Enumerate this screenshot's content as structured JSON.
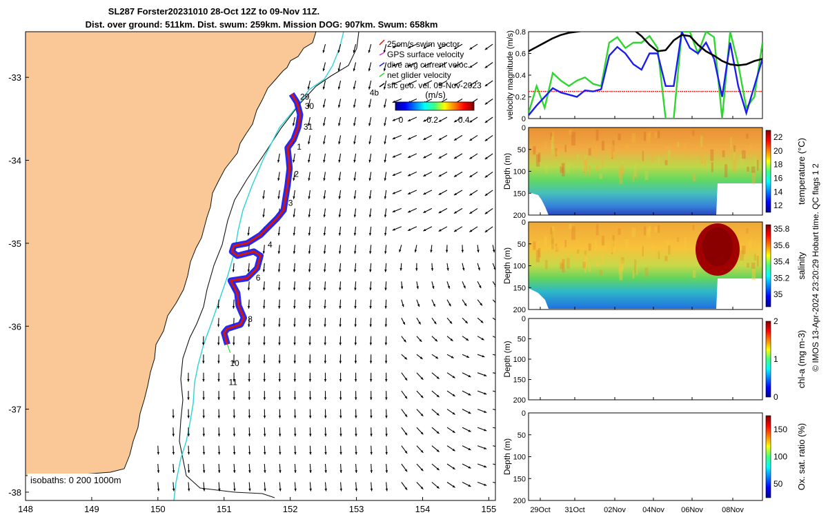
{
  "title": {
    "line1": "SL287 Forster20231010 28-Oct 12Z to 09-Nov 11Z.",
    "line2": "Dist. over ground: 511km. Dist. swum: 259km. Mission DOG: 907km. Swum: 658km"
  },
  "footer_text": "© IMOS 13-Apr-2024 23:20:29 Hobart time. QC flags 1  2",
  "colors": {
    "land": "#f9c896",
    "coast": "#111111",
    "iso200": "#2ad4d6",
    "track": "#d1180c",
    "current": "#1b1cf0",
    "gps": "#d733d6",
    "net": "#30d630",
    "thresh": "#ff2020"
  },
  "chart_data": [
    {
      "id": "map",
      "type": "map",
      "xticks": [
        "148",
        "149",
        "150",
        "151",
        "152",
        "153",
        "154",
        "155"
      ],
      "yticks": [
        "-33",
        "-34",
        "-35",
        "-36",
        "-37",
        "-38"
      ],
      "xlim": [
        148,
        155.1
      ],
      "ylim": [
        -38.1,
        -32.45
      ],
      "legend": [
        "25cm/s swim vector",
        "GPS surface velocity",
        "dive avg current veloc.",
        "net glider velocity",
        "sfc geo. vel. 09-Nov-2023"
      ],
      "isobath_label": "isobaths: 0   200  1000m",
      "colorbar": {
        "label": "(m/s)",
        "ticks": [
          "0",
          "0.2",
          "0.4"
        ],
        "range": [
          0,
          0.5
        ]
      },
      "day_labels": [
        {
          "text": "29",
          "lon": 152.15,
          "lat": -33.27
        },
        {
          "text": "30",
          "lon": 152.22,
          "lat": -33.38
        },
        {
          "text": "31",
          "lon": 152.2,
          "lat": -33.63
        },
        {
          "text": "1",
          "lon": 152.1,
          "lat": -33.87
        },
        {
          "text": "2",
          "lon": 152.06,
          "lat": -34.2
        },
        {
          "text": "3",
          "lon": 151.97,
          "lat": -34.55
        },
        {
          "text": "4",
          "lon": 151.66,
          "lat": -35.05
        },
        {
          "text": "6",
          "lon": 151.48,
          "lat": -35.45
        },
        {
          "text": "8",
          "lon": 151.36,
          "lat": -35.95
        },
        {
          "text": "10",
          "lon": 151.09,
          "lat": -36.48
        },
        {
          "text": "11",
          "lon": 151.07,
          "lat": -36.71
        },
        {
          "text": "4b",
          "lon": 153.2,
          "lat": -33.22
        }
      ],
      "track": [
        [
          152.02,
          -33.2
        ],
        [
          152.1,
          -33.3
        ],
        [
          152.15,
          -33.45
        ],
        [
          152.12,
          -33.6
        ],
        [
          152.05,
          -33.75
        ],
        [
          151.96,
          -33.85
        ],
        [
          151.98,
          -34.0
        ],
        [
          151.99,
          -34.1
        ],
        [
          151.96,
          -34.3
        ],
        [
          151.93,
          -34.45
        ],
        [
          151.9,
          -34.6
        ],
        [
          151.8,
          -34.7
        ],
        [
          151.55,
          -34.9
        ],
        [
          151.35,
          -35.0
        ],
        [
          151.15,
          -35.03
        ],
        [
          151.12,
          -35.1
        ],
        [
          151.2,
          -35.15
        ],
        [
          151.45,
          -35.1
        ],
        [
          151.55,
          -35.15
        ],
        [
          151.5,
          -35.3
        ],
        [
          151.35,
          -35.42
        ],
        [
          151.1,
          -35.45
        ],
        [
          151.2,
          -35.6
        ],
        [
          151.22,
          -35.75
        ],
        [
          151.3,
          -35.9
        ],
        [
          151.25,
          -35.98
        ],
        [
          151.05,
          -36.03
        ],
        [
          151.0,
          -36.08
        ],
        [
          151.05,
          -36.22
        ]
      ]
    },
    {
      "id": "velocity",
      "type": "line",
      "ylabel": "velocity magnitude (m/s)",
      "ylim": [
        0,
        0.8
      ],
      "yticks": [
        "0",
        "0.2",
        "0.4",
        "0.6",
        "0.8"
      ],
      "threshold": 0.25,
      "series": [
        {
          "name": "sfc geo",
          "values": [
            0.62,
            0.66,
            0.7,
            0.74,
            0.77,
            0.79,
            0.8,
            0.81,
            0.82,
            0.83,
            0.84,
            0.84,
            0.84,
            0.82,
            0.76,
            0.68,
            0.62,
            0.63,
            0.72,
            0.77,
            0.76,
            0.68,
            0.62,
            0.58,
            0.53,
            0.5,
            0.49,
            0.5,
            0.53,
            0.55
          ]
        },
        {
          "name": "dive avg current",
          "values": [
            0.03,
            0.12,
            0.2,
            0.28,
            0.24,
            0.22,
            0.2,
            0.26,
            0.25,
            0.27,
            0.58,
            0.66,
            0.6,
            0.5,
            0.45,
            0.6,
            0.6,
            0.3,
            0.3,
            0.8,
            0.65,
            0.6,
            0.7,
            0.55,
            0.2,
            0.7,
            0.3,
            0.05,
            0.3,
            0.55
          ]
        },
        {
          "name": "net glider velocity",
          "values": [
            0.05,
            0.3,
            0.1,
            0.42,
            0.35,
            0.3,
            0.35,
            0.38,
            0.32,
            0.3,
            0.7,
            0.75,
            0.65,
            0.7,
            0.7,
            0.76,
            0.65,
            0.0,
            0.0,
            0.8,
            0.8,
            0.6,
            0.8,
            0.75,
            0.0,
            0.8,
            0.5,
            0.1,
            0.2,
            0.7
          ]
        }
      ]
    },
    {
      "id": "temperature",
      "type": "heatmap",
      "ylabel": "Depth (m)",
      "yticks": [
        "0",
        "50",
        "100",
        "150",
        "200"
      ],
      "cbar_label": "temperature (°C)",
      "cbar_ticks": [
        "12",
        "14",
        "16",
        "18",
        "20",
        "22"
      ],
      "crange": [
        11,
        23
      ]
    },
    {
      "id": "salinity",
      "type": "heatmap",
      "ylabel": "Depth (m)",
      "yticks": [
        "0",
        "50",
        "100",
        "150",
        "200"
      ],
      "cbar_label": "salinity",
      "cbar_ticks": [
        "35",
        "35.2",
        "35.4",
        "35.6",
        "35.8"
      ],
      "crange": [
        34.85,
        35.85
      ]
    },
    {
      "id": "chla",
      "type": "heatmap",
      "ylabel": "Depth (m)",
      "yticks": [
        "0",
        "50",
        "100",
        "150",
        "200"
      ],
      "cbar_label": "chl-a (mg m-3)",
      "cbar_ticks": [
        "0",
        "1",
        "2"
      ],
      "crange": [
        0,
        2
      ]
    },
    {
      "id": "oxygen",
      "type": "heatmap",
      "ylabel": "Depth (m)",
      "yticks": [
        "0",
        "50",
        "100",
        "150",
        "200"
      ],
      "cbar_label": "Ox. sat. ratio (%)",
      "cbar_ticks": [
        "50",
        "100",
        "150"
      ],
      "crange": [
        25,
        175
      ],
      "xticks": [
        "29Oct",
        "31Oct",
        "02Nov",
        "04Nov",
        "06Nov",
        "08Nov"
      ]
    }
  ]
}
